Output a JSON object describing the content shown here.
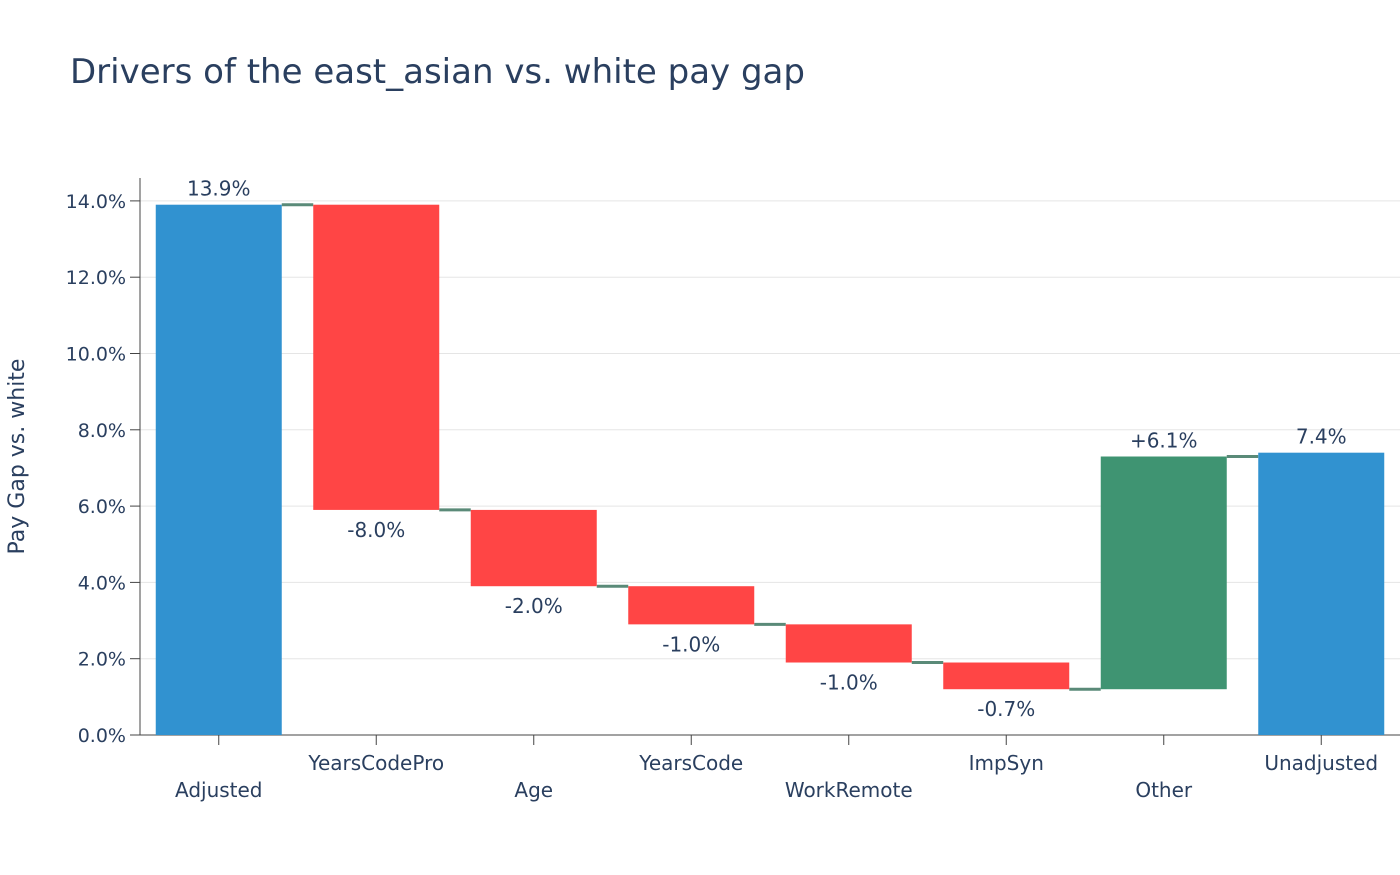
{
  "chart_data": {
    "type": "waterfall",
    "title": "Drivers of the east_asian vs. white pay gap",
    "xlabel": "",
    "ylabel": "Pay Gap vs. white",
    "ylim": [
      0,
      0.146
    ],
    "yticks": [
      0,
      0.02,
      0.04,
      0.06,
      0.08,
      0.1,
      0.12,
      0.14
    ],
    "ytick_labels": [
      "0.0%",
      "2.0%",
      "4.0%",
      "6.0%",
      "8.0%",
      "10.0%",
      "12.0%",
      "14.0%"
    ],
    "grid": true,
    "colors": {
      "total": "#3192d0",
      "decrease": "#ff4545",
      "increase": "#3f9472",
      "connector": "#5a8a78",
      "text": "#2a3f5f",
      "grid": "#e5e5e5"
    },
    "categories": [
      "Adjusted",
      "YearsCodePro",
      "Age",
      "YearsCode",
      "WorkRemote",
      "ImpSyn",
      "Other",
      "Unadjusted"
    ],
    "measures": [
      "total",
      "relative",
      "relative",
      "relative",
      "relative",
      "relative",
      "relative",
      "total"
    ],
    "values": [
      0.139,
      -0.08,
      -0.02,
      -0.01,
      -0.01,
      -0.007,
      0.061,
      0.074
    ],
    "labels": [
      "13.9%",
      "-8.0%",
      "-2.0%",
      "-1.0%",
      "-1.0%",
      "-0.7%",
      "+6.1%",
      "7.4%"
    ]
  }
}
